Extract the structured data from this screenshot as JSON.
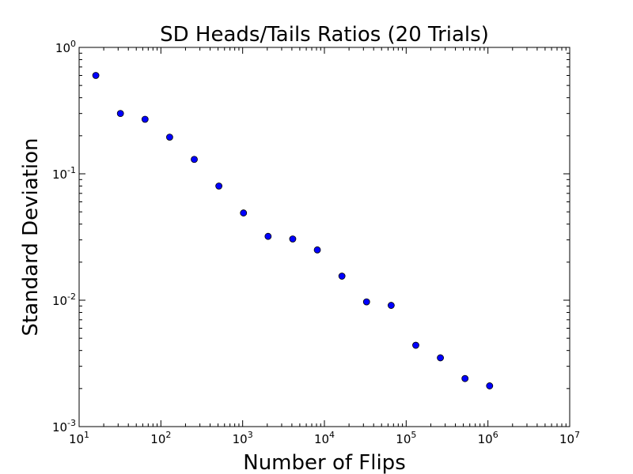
{
  "chart_data": {
    "type": "scatter",
    "title": "SD Heads/Tails Ratios (20 Trials)",
    "xlabel": "Number of Flips",
    "ylabel": "Standard Deviation",
    "xscale": "log",
    "yscale": "log",
    "xlim": [
      10,
      10000000
    ],
    "ylim": [
      0.001,
      1
    ],
    "grid": false,
    "legend": "none",
    "x_ticks": [
      {
        "base": "10",
        "exp": "1",
        "value": 10
      },
      {
        "base": "10",
        "exp": "2",
        "value": 100
      },
      {
        "base": "10",
        "exp": "3",
        "value": 1000
      },
      {
        "base": "10",
        "exp": "4",
        "value": 10000
      },
      {
        "base": "10",
        "exp": "5",
        "value": 100000
      },
      {
        "base": "10",
        "exp": "6",
        "value": 1000000
      },
      {
        "base": "10",
        "exp": "7",
        "value": 10000000
      }
    ],
    "y_ticks": [
      {
        "base": "10",
        "exp": "-3",
        "value": 0.001
      },
      {
        "base": "10",
        "exp": "-2",
        "value": 0.01
      },
      {
        "base": "10",
        "exp": "-1",
        "value": 0.1
      },
      {
        "base": "10",
        "exp": "0",
        "value": 1
      }
    ],
    "marker_color": "#0000ff",
    "marker_edge": "#000000",
    "points": [
      {
        "x": 16,
        "y": 0.6
      },
      {
        "x": 32,
        "y": 0.3
      },
      {
        "x": 64,
        "y": 0.27
      },
      {
        "x": 128,
        "y": 0.195
      },
      {
        "x": 256,
        "y": 0.13
      },
      {
        "x": 512,
        "y": 0.08
      },
      {
        "x": 1024,
        "y": 0.049
      },
      {
        "x": 2048,
        "y": 0.032
      },
      {
        "x": 4096,
        "y": 0.0305
      },
      {
        "x": 8192,
        "y": 0.025
      },
      {
        "x": 16384,
        "y": 0.0155
      },
      {
        "x": 32768,
        "y": 0.0097
      },
      {
        "x": 65536,
        "y": 0.0091
      },
      {
        "x": 131072,
        "y": 0.0044
      },
      {
        "x": 262144,
        "y": 0.0035
      },
      {
        "x": 524288,
        "y": 0.0024
      },
      {
        "x": 1048576,
        "y": 0.0021
      }
    ]
  }
}
